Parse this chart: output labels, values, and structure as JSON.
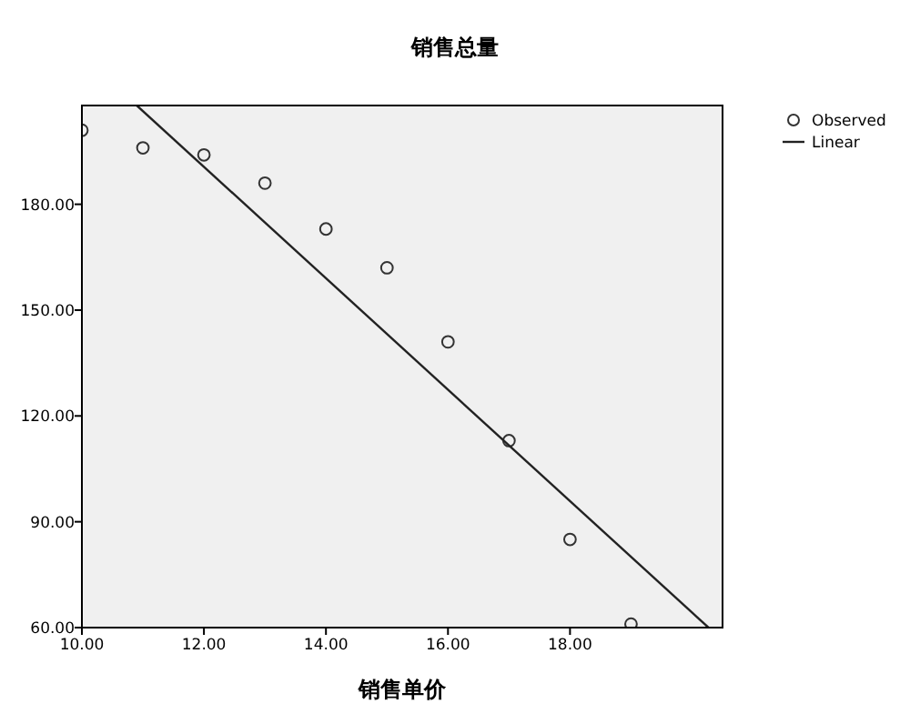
{
  "chart_data": {
    "type": "scatter",
    "title": "销售总量",
    "xlabel": "销售单价",
    "xlim": [
      10,
      20.5
    ],
    "ylim": [
      60,
      208
    ],
    "xticks": [
      {
        "value": 10,
        "label": "10.00"
      },
      {
        "value": 12,
        "label": "12.00"
      },
      {
        "value": 14,
        "label": "14.00"
      },
      {
        "value": 16,
        "label": "16.00"
      },
      {
        "value": 18,
        "label": "18.00"
      }
    ],
    "yticks": [
      {
        "value": 60,
        "label": "60.00"
      },
      {
        "value": 90,
        "label": "90.00"
      },
      {
        "value": 120,
        "label": "120.00"
      },
      {
        "value": 150,
        "label": "150.00"
      },
      {
        "value": 180,
        "label": "180.00"
      }
    ],
    "legend": "top right",
    "grid": false,
    "series": [
      {
        "name": "Observed",
        "marker": "circle",
        "color": "#333333",
        "x": [
          10,
          11,
          12,
          13,
          14,
          15,
          16,
          17,
          18,
          19
        ],
        "values": [
          201,
          196,
          194,
          186,
          173,
          162,
          141,
          113,
          85,
          61
        ]
      },
      {
        "name": "Linear",
        "type": "line",
        "marker": "none",
        "line_style": "solid",
        "color": "#222222",
        "x": [
          10.9,
          20.27
        ],
        "values": [
          208,
          60
        ]
      }
    ]
  }
}
